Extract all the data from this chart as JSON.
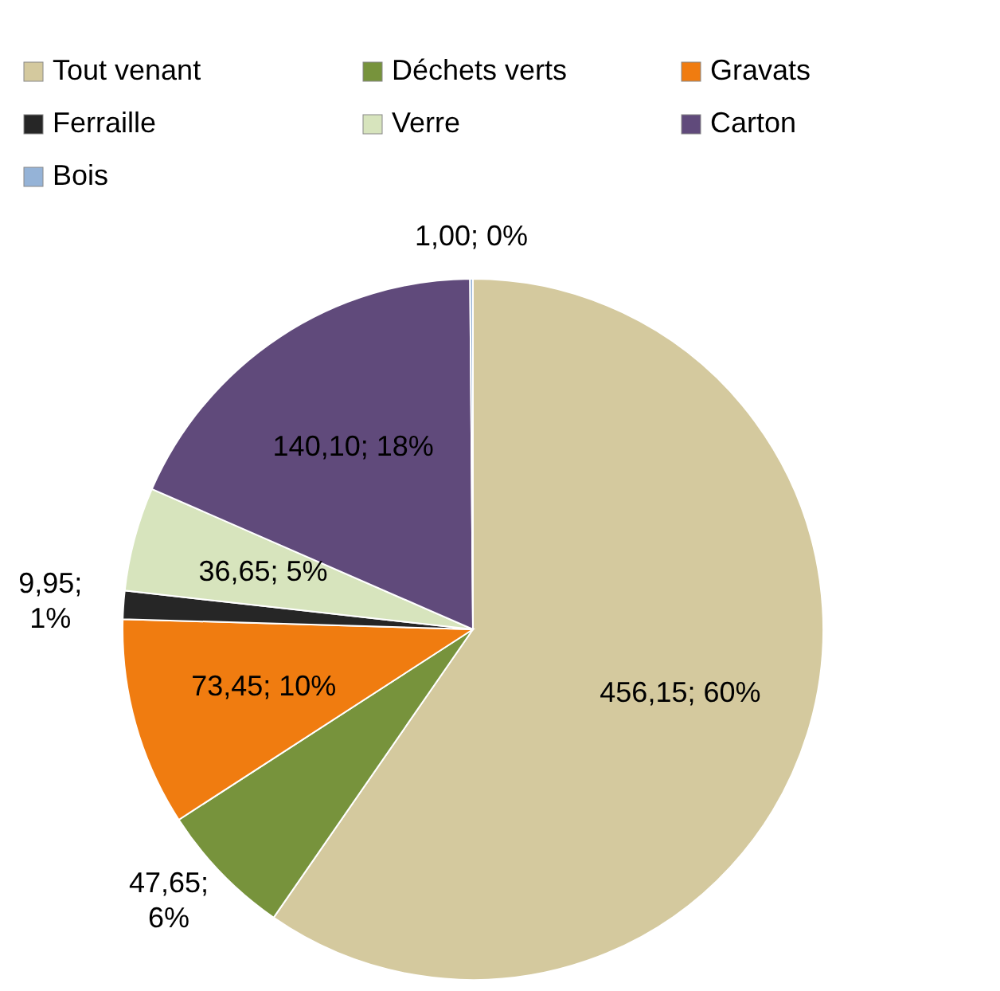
{
  "chart_data": {
    "type": "pie",
    "categories": [
      "Tout venant",
      "Déchets verts",
      "Gravats",
      "Ferraille",
      "Verre",
      "Carton",
      "Bois"
    ],
    "values": [
      456.15,
      47.65,
      73.45,
      9.95,
      36.65,
      140.1,
      1.0
    ],
    "colors": [
      "#d4c99e",
      "#77933c",
      "#f07c10",
      "#262626",
      "#d7e4bd",
      "#604a7b",
      "#95b3d7"
    ],
    "value_labels": [
      "456,15; 60%",
      "47,65; 6%",
      "73,45; 10%",
      "9,95; 1%",
      "36,65; 5%",
      "140,10; 18%",
      "1,00; 0%"
    ],
    "legend": "top"
  }
}
